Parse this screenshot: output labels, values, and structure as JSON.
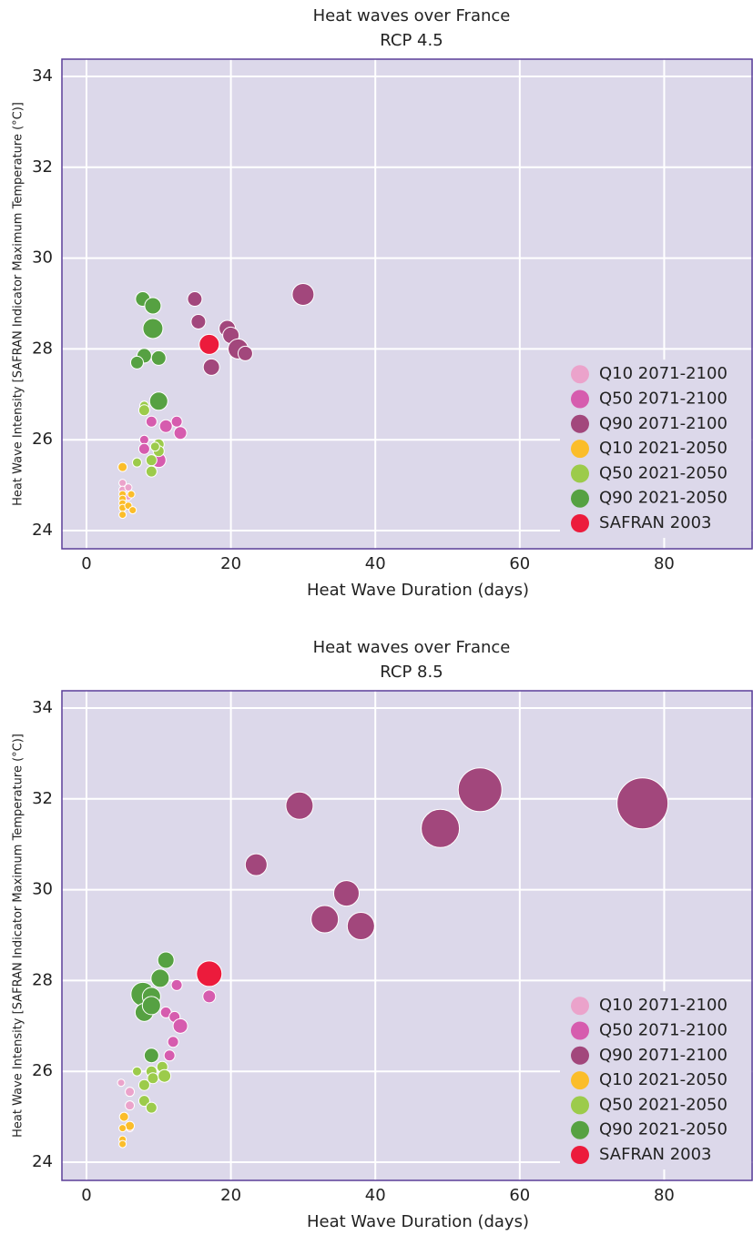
{
  "chart_data": [
    {
      "type": "bubble",
      "title": "Heat waves over France",
      "subtitle": "RCP 4.5",
      "x_label": "Heat Wave Duration (days)",
      "y_label": "Heat Wave Intensity [SAFRAN Indicator Maximum Temperature (°C)]",
      "xlim": [
        -3.4,
        92.3
      ],
      "ylim": [
        23.6,
        34.38
      ],
      "xticks": [
        0,
        20,
        40,
        60,
        80
      ],
      "yticks": [
        24,
        26,
        28,
        30,
        32,
        34
      ],
      "grid": true,
      "legend": "lower right",
      "background": "#dcd8ea",
      "series": [
        {
          "name": "Q10 2071-2100",
          "color": "#eba3cb",
          "x": [
            5,
            5,
            5.8,
            5.8
          ],
          "values": [
            25.05,
            24.9,
            24.95,
            24.75
          ],
          "sizes": [
            4,
            4,
            4,
            4
          ]
        },
        {
          "name": "Q50 2071-2100",
          "color": "#d65cae",
          "x": [
            8,
            8,
            9,
            11,
            12.5,
            13,
            10
          ],
          "values": [
            26.0,
            25.8,
            26.4,
            26.3,
            26.4,
            26.15,
            25.55
          ],
          "sizes": [
            5,
            6,
            6,
            7,
            6,
            7,
            8
          ]
        },
        {
          "name": "Q90 2071-2100",
          "color": "#a2477c",
          "x": [
            15,
            15.5,
            19.5,
            20,
            21,
            22,
            17.3,
            30
          ],
          "values": [
            29.1,
            28.6,
            28.45,
            28.3,
            28.0,
            27.9,
            27.6,
            29.2
          ],
          "sizes": [
            8,
            8,
            9,
            9,
            11,
            8,
            9,
            12
          ]
        },
        {
          "name": "Q10 2021-2050",
          "color": "#fbbd2a",
          "x": [
            5,
            5,
            5,
            5,
            5,
            5,
            5.8,
            6.2,
            6.4
          ],
          "values": [
            25.4,
            24.8,
            24.7,
            24.6,
            24.5,
            24.35,
            24.55,
            24.8,
            24.45
          ],
          "sizes": [
            5,
            4,
            4,
            4,
            4,
            4,
            4,
            4,
            4
          ]
        },
        {
          "name": "Q50 2021-2050",
          "color": "#9ccb4b",
          "x": [
            8,
            8,
            7,
            9,
            9,
            10,
            10,
            9.5
          ],
          "values": [
            26.75,
            26.65,
            25.5,
            25.3,
            25.55,
            25.9,
            25.75,
            25.85
          ],
          "sizes": [
            5,
            6,
            5,
            6,
            6,
            6,
            6,
            5
          ]
        },
        {
          "name": "Q90 2021-2050",
          "color": "#56a142",
          "x": [
            7.8,
            9.2,
            9.2,
            8,
            7,
            10,
            10
          ],
          "values": [
            29.1,
            28.95,
            28.45,
            27.85,
            27.7,
            27.8,
            26.85
          ],
          "sizes": [
            8,
            9,
            11,
            8,
            7,
            8,
            10
          ]
        },
        {
          "name": "SAFRAN 2003",
          "color": "#ec1b3c",
          "x": [
            17
          ],
          "values": [
            28.1
          ],
          "sizes": [
            11
          ]
        }
      ]
    },
    {
      "type": "bubble",
      "title": "Heat waves over France",
      "subtitle": "RCP 8.5",
      "x_label": "Heat Wave Duration (days)",
      "y_label": "Heat Wave Intensity [SAFRAN Indicator Maximum Temperature (°C)]",
      "xlim": [
        -3.4,
        92.3
      ],
      "ylim": [
        23.6,
        34.38
      ],
      "xticks": [
        0,
        20,
        40,
        60,
        80
      ],
      "yticks": [
        24,
        26,
        28,
        30,
        32,
        34
      ],
      "grid": true,
      "legend": "lower right",
      "background": "#dcd8ea",
      "series": [
        {
          "name": "Q10 2071-2100",
          "color": "#eba3cb",
          "x": [
            4.8,
            6,
            6,
            6
          ],
          "values": [
            25.75,
            25.55,
            25.25,
            24.75
          ],
          "sizes": [
            4,
            5,
            5,
            4
          ]
        },
        {
          "name": "Q50 2071-2100",
          "color": "#d65cae",
          "x": [
            12.5,
            11,
            12.2,
            13,
            12,
            11.5,
            17
          ],
          "values": [
            27.9,
            27.3,
            27.2,
            27.0,
            26.65,
            26.35,
            27.65
          ],
          "sizes": [
            6,
            6,
            6,
            8,
            6,
            6,
            7
          ]
        },
        {
          "name": "Q90 2071-2100",
          "color": "#a2477c",
          "x": [
            29.5,
            23.5,
            36,
            33,
            38,
            49,
            54.5,
            77
          ],
          "values": [
            31.85,
            30.55,
            29.92,
            29.35,
            29.2,
            31.35,
            32.2,
            31.9
          ],
          "sizes": [
            15,
            12,
            14,
            15,
            15,
            21,
            24,
            28
          ]
        },
        {
          "name": "Q10 2021-2050",
          "color": "#fbbd2a",
          "x": [
            5.2,
            6,
            5,
            5,
            5
          ],
          "values": [
            25.0,
            24.8,
            24.75,
            24.5,
            24.4
          ],
          "sizes": [
            5,
            5,
            4,
            4,
            4
          ]
        },
        {
          "name": "Q50 2021-2050",
          "color": "#9ccb4b",
          "x": [
            7,
            8,
            8,
            9,
            9.2,
            10.5,
            10.8,
            9
          ],
          "values": [
            26.0,
            25.7,
            25.35,
            26.0,
            25.85,
            26.1,
            25.9,
            25.2
          ],
          "sizes": [
            5,
            6,
            6,
            6,
            6,
            6,
            7,
            6
          ]
        },
        {
          "name": "Q90 2021-2050",
          "color": "#56a142",
          "x": [
            11,
            10.2,
            7.8,
            9,
            8,
            9,
            9
          ],
          "values": [
            28.45,
            28.05,
            27.7,
            27.65,
            27.3,
            27.45,
            26.35
          ],
          "sizes": [
            9,
            10,
            13,
            10,
            10,
            10,
            8
          ]
        },
        {
          "name": "SAFRAN 2003",
          "color": "#ec1b3c",
          "x": [
            17
          ],
          "values": [
            28.15
          ],
          "sizes": [
            14
          ]
        }
      ]
    }
  ]
}
